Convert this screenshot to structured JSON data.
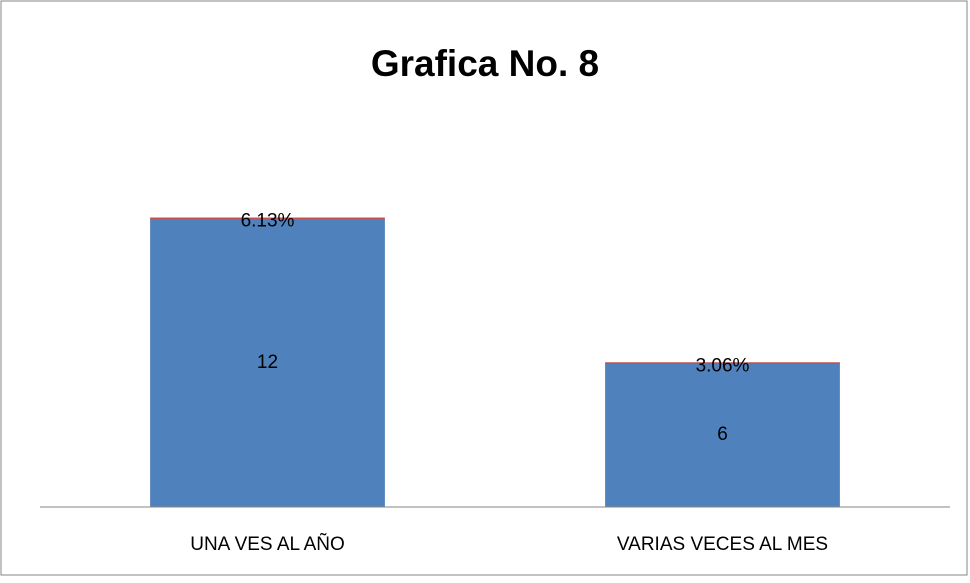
{
  "chart_data": {
    "type": "stacked_bar",
    "title": "Grafica No. 8",
    "categories": [
      "UNA VES AL AÑO",
      "VARIAS VECES AL MES"
    ],
    "series": [
      {
        "color": "#4f81bd",
        "values": [
          12,
          6
        ]
      },
      {
        "color": "#c0504d",
        "values": [
          0.0613,
          0.0306
        ],
        "value_labels": [
          "6.13%",
          "3.06%"
        ]
      }
    ],
    "ylim": [
      0,
      14
    ]
  }
}
